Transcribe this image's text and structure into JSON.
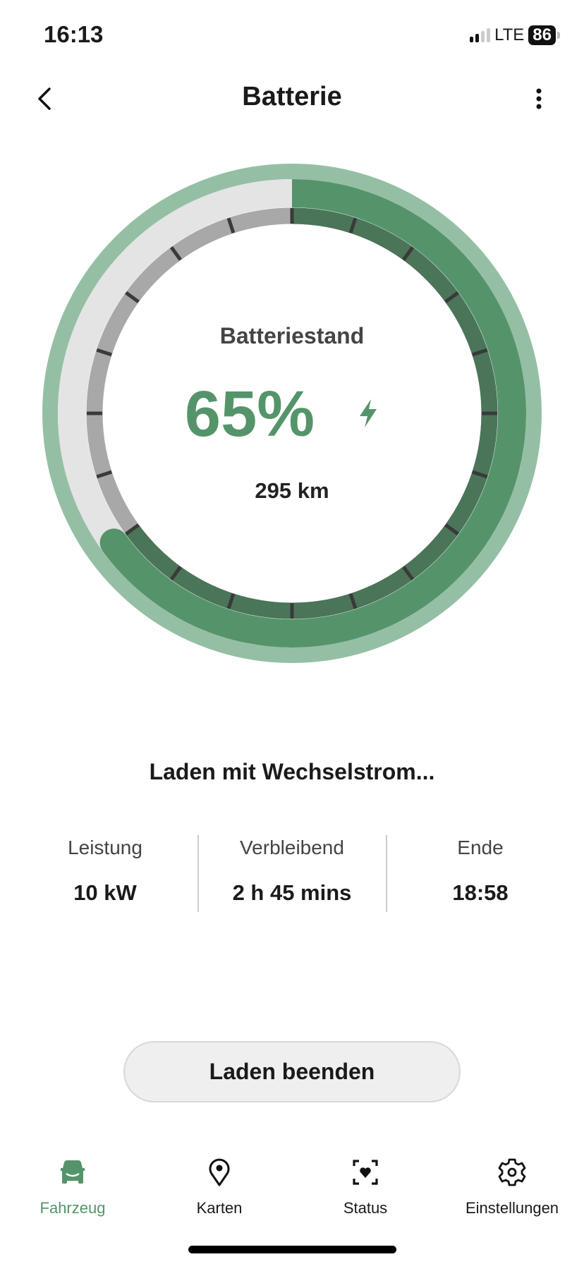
{
  "status_bar": {
    "time": "16:13",
    "network": "LTE",
    "battery": "86",
    "signal_bars": 2
  },
  "header": {
    "title": "Batterie",
    "back_icon": "chevron-left-icon",
    "menu_icon": "more-vertical-icon"
  },
  "gauge": {
    "label": "Batteriestand",
    "percent_text": "65%",
    "percent": 65,
    "range": "295 km",
    "charging_icon": "bolt-icon",
    "colors": {
      "outer": "#95bfa4",
      "fill": "#55946a",
      "fill_inner": "#4a7559",
      "empty": "#e4e4e4",
      "empty_inner": "#a8a8a8",
      "tick": "#3a3a3a"
    }
  },
  "charging": {
    "status": "Laden mit Wechselstrom...",
    "stats": [
      {
        "label": "Leistung",
        "value": "10 kW"
      },
      {
        "label": "Verbleibend",
        "value": "2 h 45 mins"
      },
      {
        "label": "Ende",
        "value": "18:58"
      }
    ]
  },
  "stop_button": "Laden beenden",
  "nav": [
    {
      "label": "Fahrzeug",
      "icon": "car-icon",
      "active": true
    },
    {
      "label": "Karten",
      "icon": "map-pin-icon"
    },
    {
      "label": "Status",
      "icon": "heart-scan-icon"
    },
    {
      "label": "Einstellungen",
      "icon": "gear-icon"
    }
  ],
  "accent": "#55946a"
}
